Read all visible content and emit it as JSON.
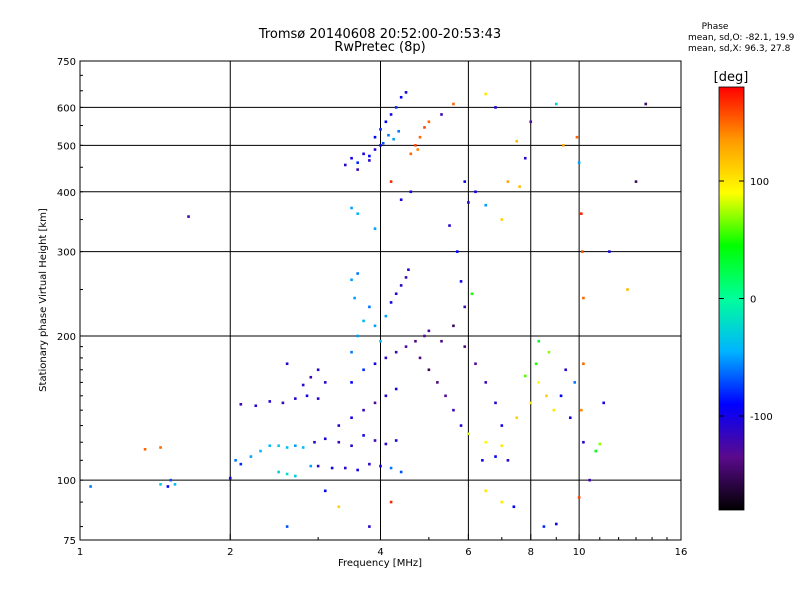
{
  "chart_data": {
    "type": "scatter",
    "title": "Tromsø 20140608 20:52:00-20:53:43",
    "subtitle": "RwPretec (8p)",
    "xlabel": "Frequency [MHz]",
    "ylabel": "Stationary phase Virtual Height [km]",
    "x_scale": "log",
    "y_scale": "log",
    "xlim": [
      1,
      16
    ],
    "ylim": [
      75,
      750
    ],
    "x_ticks": [
      1,
      2,
      4,
      6,
      8,
      10,
      16
    ],
    "y_ticks": [
      75,
      100,
      200,
      300,
      400,
      500,
      600,
      750
    ],
    "grid": true,
    "colorbar": {
      "label": "[deg]",
      "range": [
        -180,
        180
      ],
      "ticks": [
        100,
        0,
        -100
      ],
      "colormap": "rainbow",
      "stops": [
        "#000000",
        "#5a0a8c",
        "#0000ff",
        "#00b4ff",
        "#00ff9a",
        "#00ff00",
        "#ffff00",
        "#ff9900",
        "#ff0000"
      ]
    },
    "phase_info": {
      "title": "Phase",
      "line1": "mean, sd,O:  -82.1, 19.9",
      "line2": "mean, sd,X:  96.3, 27.8"
    },
    "series": [
      {
        "values": [
          {
            "x": 1.05,
            "y": 97,
            "p": -60
          },
          {
            "x": 1.45,
            "y": 98,
            "p": -30
          },
          {
            "x": 1.5,
            "y": 97,
            "p": -90
          },
          {
            "x": 1.52,
            "y": 100,
            "p": -70
          },
          {
            "x": 1.55,
            "y": 98,
            "p": -40
          },
          {
            "x": 1.65,
            "y": 355,
            "p": -120
          },
          {
            "x": 1.35,
            "y": 116,
            "p": 150
          },
          {
            "x": 1.45,
            "y": 117,
            "p": 150
          },
          {
            "x": 2.0,
            "y": 101,
            "p": -100
          },
          {
            "x": 2.05,
            "y": 110,
            "p": -60
          },
          {
            "x": 2.1,
            "y": 108,
            "p": -80
          },
          {
            "x": 2.2,
            "y": 112,
            "p": -50
          },
          {
            "x": 2.3,
            "y": 115,
            "p": -40
          },
          {
            "x": 2.4,
            "y": 118,
            "p": -40
          },
          {
            "x": 2.5,
            "y": 118,
            "p": -30
          },
          {
            "x": 2.6,
            "y": 117,
            "p": -40
          },
          {
            "x": 2.7,
            "y": 118,
            "p": -50
          },
          {
            "x": 2.8,
            "y": 117,
            "p": -40
          },
          {
            "x": 2.5,
            "y": 104,
            "p": -30
          },
          {
            "x": 2.6,
            "y": 103,
            "p": -20
          },
          {
            "x": 2.7,
            "y": 102,
            "p": -30
          },
          {
            "x": 2.9,
            "y": 107,
            "p": -50
          },
          {
            "x": 2.1,
            "y": 144,
            "p": -120
          },
          {
            "x": 2.25,
            "y": 143,
            "p": -110
          },
          {
            "x": 2.4,
            "y": 146,
            "p": -110
          },
          {
            "x": 2.55,
            "y": 145,
            "p": -120
          },
          {
            "x": 2.7,
            "y": 148,
            "p": -110
          },
          {
            "x": 2.85,
            "y": 150,
            "p": -100
          },
          {
            "x": 3.0,
            "y": 148,
            "p": -110
          },
          {
            "x": 2.6,
            "y": 175,
            "p": -110
          },
          {
            "x": 2.8,
            "y": 158,
            "p": -110
          },
          {
            "x": 2.9,
            "y": 164,
            "p": -120
          },
          {
            "x": 3.0,
            "y": 170,
            "p": -110
          },
          {
            "x": 3.1,
            "y": 160,
            "p": -110
          },
          {
            "x": 3.0,
            "y": 107,
            "p": -110
          },
          {
            "x": 3.2,
            "y": 106,
            "p": -100
          },
          {
            "x": 3.4,
            "y": 106,
            "p": -110
          },
          {
            "x": 3.6,
            "y": 105,
            "p": -100
          },
          {
            "x": 3.8,
            "y": 108,
            "p": -110
          },
          {
            "x": 4.0,
            "y": 107,
            "p": -100
          },
          {
            "x": 4.2,
            "y": 106,
            "p": -60
          },
          {
            "x": 4.4,
            "y": 104,
            "p": -70
          },
          {
            "x": 2.95,
            "y": 120,
            "p": -110
          },
          {
            "x": 3.1,
            "y": 122,
            "p": -100
          },
          {
            "x": 3.3,
            "y": 120,
            "p": -120
          },
          {
            "x": 3.5,
            "y": 118,
            "p": -110
          },
          {
            "x": 3.7,
            "y": 124,
            "p": -100
          },
          {
            "x": 3.9,
            "y": 121,
            "p": -120
          },
          {
            "x": 4.1,
            "y": 119,
            "p": -110
          },
          {
            "x": 4.3,
            "y": 121,
            "p": -100
          },
          {
            "x": 3.3,
            "y": 130,
            "p": -110
          },
          {
            "x": 3.5,
            "y": 135,
            "p": -100
          },
          {
            "x": 3.7,
            "y": 140,
            "p": -120
          },
          {
            "x": 3.9,
            "y": 145,
            "p": -130
          },
          {
            "x": 4.1,
            "y": 150,
            "p": -110
          },
          {
            "x": 4.3,
            "y": 155,
            "p": -100
          },
          {
            "x": 3.5,
            "y": 160,
            "p": -90
          },
          {
            "x": 3.7,
            "y": 170,
            "p": -80
          },
          {
            "x": 3.9,
            "y": 175,
            "p": -100
          },
          {
            "x": 4.1,
            "y": 180,
            "p": -110
          },
          {
            "x": 4.3,
            "y": 185,
            "p": -120
          },
          {
            "x": 4.5,
            "y": 190,
            "p": -130
          },
          {
            "x": 4.7,
            "y": 195,
            "p": -140
          },
          {
            "x": 4.9,
            "y": 200,
            "p": -130
          },
          {
            "x": 3.5,
            "y": 185,
            "p": -60
          },
          {
            "x": 3.6,
            "y": 200,
            "p": -50
          },
          {
            "x": 3.7,
            "y": 215,
            "p": -40
          },
          {
            "x": 3.8,
            "y": 230,
            "p": -60
          },
          {
            "x": 3.9,
            "y": 210,
            "p": -50
          },
          {
            "x": 4.0,
            "y": 195,
            "p": -40
          },
          {
            "x": 4.1,
            "y": 220,
            "p": -50
          },
          {
            "x": 4.2,
            "y": 235,
            "p": -100
          },
          {
            "x": 4.3,
            "y": 245,
            "p": -110
          },
          {
            "x": 4.4,
            "y": 255,
            "p": -110
          },
          {
            "x": 4.5,
            "y": 265,
            "p": -120
          },
          {
            "x": 4.55,
            "y": 275,
            "p": -110
          },
          {
            "x": 3.5,
            "y": 262,
            "p": -50
          },
          {
            "x": 3.6,
            "y": 270,
            "p": -60
          },
          {
            "x": 3.55,
            "y": 240,
            "p": -50
          },
          {
            "x": 4.8,
            "y": 180,
            "p": -140
          },
          {
            "x": 5.0,
            "y": 170,
            "p": -150
          },
          {
            "x": 5.2,
            "y": 160,
            "p": -140
          },
          {
            "x": 5.4,
            "y": 150,
            "p": -130
          },
          {
            "x": 5.6,
            "y": 140,
            "p": -120
          },
          {
            "x": 5.8,
            "y": 130,
            "p": -110
          },
          {
            "x": 5.0,
            "y": 205,
            "p": -130
          },
          {
            "x": 5.3,
            "y": 195,
            "p": -140
          },
          {
            "x": 5.6,
            "y": 210,
            "p": -150
          },
          {
            "x": 5.9,
            "y": 190,
            "p": -140
          },
          {
            "x": 6.2,
            "y": 175,
            "p": -130
          },
          {
            "x": 6.5,
            "y": 160,
            "p": -120
          },
          {
            "x": 6.8,
            "y": 145,
            "p": -110
          },
          {
            "x": 7.0,
            "y": 130,
            "p": -100
          },
          {
            "x": 6.4,
            "y": 110,
            "p": -100
          },
          {
            "x": 6.8,
            "y": 112,
            "p": -90
          },
          {
            "x": 7.2,
            "y": 110,
            "p": -110
          },
          {
            "x": 6.0,
            "y": 125,
            "p": 80
          },
          {
            "x": 6.5,
            "y": 120,
            "p": 90
          },
          {
            "x": 7.0,
            "y": 118,
            "p": 100
          },
          {
            "x": 7.5,
            "y": 135,
            "p": 110
          },
          {
            "x": 8.0,
            "y": 145,
            "p": 100
          },
          {
            "x": 8.3,
            "y": 160,
            "p": 90
          },
          {
            "x": 8.6,
            "y": 150,
            "p": 110
          },
          {
            "x": 8.9,
            "y": 140,
            "p": 100
          },
          {
            "x": 7.8,
            "y": 165,
            "p": 60
          },
          {
            "x": 8.2,
            "y": 175,
            "p": 50
          },
          {
            "x": 9.2,
            "y": 150,
            "p": -90
          },
          {
            "x": 9.6,
            "y": 135,
            "p": -100
          },
          {
            "x": 10.2,
            "y": 120,
            "p": -110
          },
          {
            "x": 10.8,
            "y": 115,
            "p": 40
          },
          {
            "x": 11.0,
            "y": 119,
            "p": 70
          },
          {
            "x": 6.5,
            "y": 95,
            "p": 100
          },
          {
            "x": 7.0,
            "y": 90,
            "p": 100
          },
          {
            "x": 7.4,
            "y": 88,
            "p": -90
          },
          {
            "x": 8.5,
            "y": 80,
            "p": -80
          },
          {
            "x": 9.0,
            "y": 81,
            "p": -100
          },
          {
            "x": 10.0,
            "y": 92,
            "p": 160
          },
          {
            "x": 10.5,
            "y": 100,
            "p": -120
          },
          {
            "x": 3.4,
            "y": 455,
            "p": -110
          },
          {
            "x": 3.6,
            "y": 445,
            "p": -120
          },
          {
            "x": 3.8,
            "y": 465,
            "p": -110
          },
          {
            "x": 3.5,
            "y": 470,
            "p": -100
          },
          {
            "x": 3.7,
            "y": 480,
            "p": -100
          },
          {
            "x": 3.9,
            "y": 490,
            "p": -110
          },
          {
            "x": 4.0,
            "y": 500,
            "p": -100
          },
          {
            "x": 3.6,
            "y": 460,
            "p": -80
          },
          {
            "x": 3.8,
            "y": 475,
            "p": -90
          },
          {
            "x": 3.9,
            "y": 520,
            "p": -90
          },
          {
            "x": 4.0,
            "y": 540,
            "p": -80
          },
          {
            "x": 4.1,
            "y": 560,
            "p": -90
          },
          {
            "x": 4.2,
            "y": 580,
            "p": -100
          },
          {
            "x": 4.3,
            "y": 600,
            "p": -80
          },
          {
            "x": 4.4,
            "y": 630,
            "p": -90
          },
          {
            "x": 4.5,
            "y": 645,
            "p": -100
          },
          {
            "x": 4.05,
            "y": 505,
            "p": -70
          },
          {
            "x": 4.15,
            "y": 525,
            "p": -60
          },
          {
            "x": 4.25,
            "y": 515,
            "p": -50
          },
          {
            "x": 4.35,
            "y": 535,
            "p": -60
          },
          {
            "x": 4.6,
            "y": 480,
            "p": 150
          },
          {
            "x": 4.7,
            "y": 500,
            "p": 160
          },
          {
            "x": 4.8,
            "y": 520,
            "p": 150
          },
          {
            "x": 4.9,
            "y": 545,
            "p": 160
          },
          {
            "x": 5.0,
            "y": 560,
            "p": 150
          },
          {
            "x": 4.75,
            "y": 490,
            "p": 140
          },
          {
            "x": 3.5,
            "y": 370,
            "p": -50
          },
          {
            "x": 3.6,
            "y": 360,
            "p": -40
          },
          {
            "x": 3.9,
            "y": 335,
            "p": -50
          },
          {
            "x": 4.2,
            "y": 420,
            "p": 170
          },
          {
            "x": 4.4,
            "y": 385,
            "p": -100
          },
          {
            "x": 4.6,
            "y": 400,
            "p": -100
          },
          {
            "x": 5.3,
            "y": 580,
            "p": -120
          },
          {
            "x": 5.6,
            "y": 610,
            "p": 150
          },
          {
            "x": 6.5,
            "y": 640,
            "p": 100
          },
          {
            "x": 6.8,
            "y": 600,
            "p": -100
          },
          {
            "x": 7.5,
            "y": 510,
            "p": 120
          },
          {
            "x": 7.8,
            "y": 470,
            "p": -110
          },
          {
            "x": 8.0,
            "y": 560,
            "p": -130
          },
          {
            "x": 5.9,
            "y": 420,
            "p": -100
          },
          {
            "x": 6.0,
            "y": 380,
            "p": -110
          },
          {
            "x": 6.2,
            "y": 400,
            "p": -100
          },
          {
            "x": 6.5,
            "y": 375,
            "p": -50
          },
          {
            "x": 7.0,
            "y": 350,
            "p": 110
          },
          {
            "x": 7.2,
            "y": 420,
            "p": 130
          },
          {
            "x": 7.6,
            "y": 410,
            "p": 120
          },
          {
            "x": 9.0,
            "y": 610,
            "p": -30
          },
          {
            "x": 9.3,
            "y": 500,
            "p": 130
          },
          {
            "x": 9.9,
            "y": 520,
            "p": 150
          },
          {
            "x": 10.0,
            "y": 460,
            "p": -50
          },
          {
            "x": 10.1,
            "y": 360,
            "p": 170
          },
          {
            "x": 10.15,
            "y": 300,
            "p": 160
          },
          {
            "x": 10.2,
            "y": 240,
            "p": 150
          },
          {
            "x": 10.2,
            "y": 175,
            "p": 150
          },
          {
            "x": 10.1,
            "y": 140,
            "p": 140
          },
          {
            "x": 11.5,
            "y": 300,
            "p": -100
          },
          {
            "x": 13.0,
            "y": 420,
            "p": -150
          },
          {
            "x": 13.6,
            "y": 610,
            "p": -150
          },
          {
            "x": 12.5,
            "y": 250,
            "p": 120
          },
          {
            "x": 11.2,
            "y": 145,
            "p": -100
          },
          {
            "x": 8.3,
            "y": 195,
            "p": 30
          },
          {
            "x": 8.7,
            "y": 185,
            "p": 70
          },
          {
            "x": 9.4,
            "y": 170,
            "p": -110
          },
          {
            "x": 9.8,
            "y": 160,
            "p": -60
          },
          {
            "x": 5.5,
            "y": 340,
            "p": -110
          },
          {
            "x": 5.7,
            "y": 300,
            "p": -90
          },
          {
            "x": 5.8,
            "y": 260,
            "p": -100
          },
          {
            "x": 6.1,
            "y": 245,
            "p": 50
          },
          {
            "x": 5.9,
            "y": 230,
            "p": -120
          },
          {
            "x": 3.1,
            "y": 95,
            "p": -90
          },
          {
            "x": 3.3,
            "y": 88,
            "p": 110
          },
          {
            "x": 3.8,
            "y": 80,
            "p": -110
          },
          {
            "x": 4.2,
            "y": 90,
            "p": 170
          },
          {
            "x": 2.6,
            "y": 80,
            "p": -70
          }
        ]
      }
    ]
  }
}
